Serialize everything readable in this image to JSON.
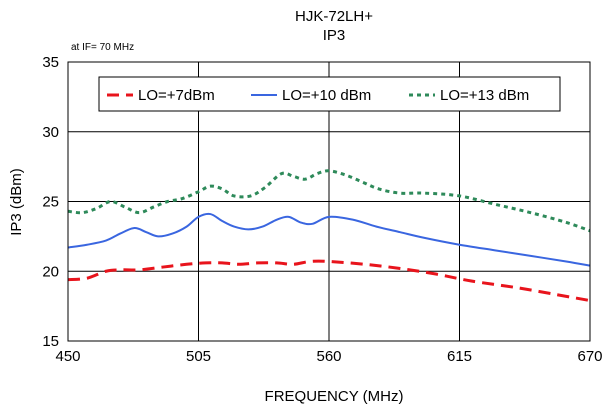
{
  "chart_data": {
    "type": "line",
    "title": "HJK-72LH+",
    "subtitle": "IP3",
    "annotation": "at IF= 70 MHz",
    "xlabel": "FREQUENCY (MHz)",
    "ylabel": "IP3 (dBm)",
    "xlim": [
      450,
      670
    ],
    "ylim": [
      15,
      35
    ],
    "xticks": [
      "450",
      "505",
      "560",
      "615",
      "670"
    ],
    "yticks": [
      "15",
      "20",
      "25",
      "30",
      "35"
    ],
    "grid": true,
    "legend_position": "top",
    "series": [
      {
        "name": "LO=+7dBm",
        "color": "#e8141c",
        "dash": "dashed",
        "x": [
          450,
          458,
          466,
          472,
          480,
          490,
          500,
          508,
          515,
          522,
          530,
          538,
          545,
          552,
          560,
          575,
          590,
          605,
          620,
          640,
          660,
          670
        ],
        "y": [
          19.4,
          19.5,
          20.0,
          20.1,
          20.1,
          20.3,
          20.5,
          20.6,
          20.6,
          20.5,
          20.6,
          20.6,
          20.5,
          20.7,
          20.7,
          20.5,
          20.2,
          19.8,
          19.3,
          18.8,
          18.2,
          17.9
        ]
      },
      {
        "name": "LO=+10 dBm",
        "color": "#3a66e0",
        "dash": "solid",
        "x": [
          450,
          458,
          466,
          472,
          478,
          483,
          488,
          494,
          500,
          505,
          510,
          515,
          520,
          526,
          532,
          538,
          543,
          548,
          553,
          560,
          570,
          580,
          590,
          600,
          615,
          630,
          645,
          660,
          670
        ],
        "y": [
          21.7,
          21.9,
          22.2,
          22.7,
          23.1,
          22.8,
          22.5,
          22.7,
          23.2,
          23.9,
          24.1,
          23.6,
          23.2,
          23.0,
          23.2,
          23.7,
          23.9,
          23.5,
          23.4,
          23.9,
          23.7,
          23.2,
          22.8,
          22.4,
          21.9,
          21.5,
          21.1,
          20.7,
          20.4
        ]
      },
      {
        "name": "LO=+13 dBm",
        "color": "#2e8a5a",
        "dash": "dotted",
        "x": [
          450,
          456,
          462,
          468,
          474,
          480,
          486,
          492,
          498,
          505,
          510,
          515,
          520,
          527,
          533,
          540,
          545,
          550,
          555,
          560,
          567,
          574,
          581,
          590,
          600,
          615,
          630,
          645,
          660,
          670
        ],
        "y": [
          24.3,
          24.2,
          24.5,
          25.0,
          24.6,
          24.2,
          24.6,
          25.0,
          25.2,
          25.7,
          26.1,
          25.9,
          25.4,
          25.4,
          26.0,
          27.0,
          26.8,
          26.6,
          27.0,
          27.2,
          26.9,
          26.4,
          25.9,
          25.6,
          25.6,
          25.4,
          24.8,
          24.2,
          23.5,
          22.9
        ]
      }
    ]
  }
}
